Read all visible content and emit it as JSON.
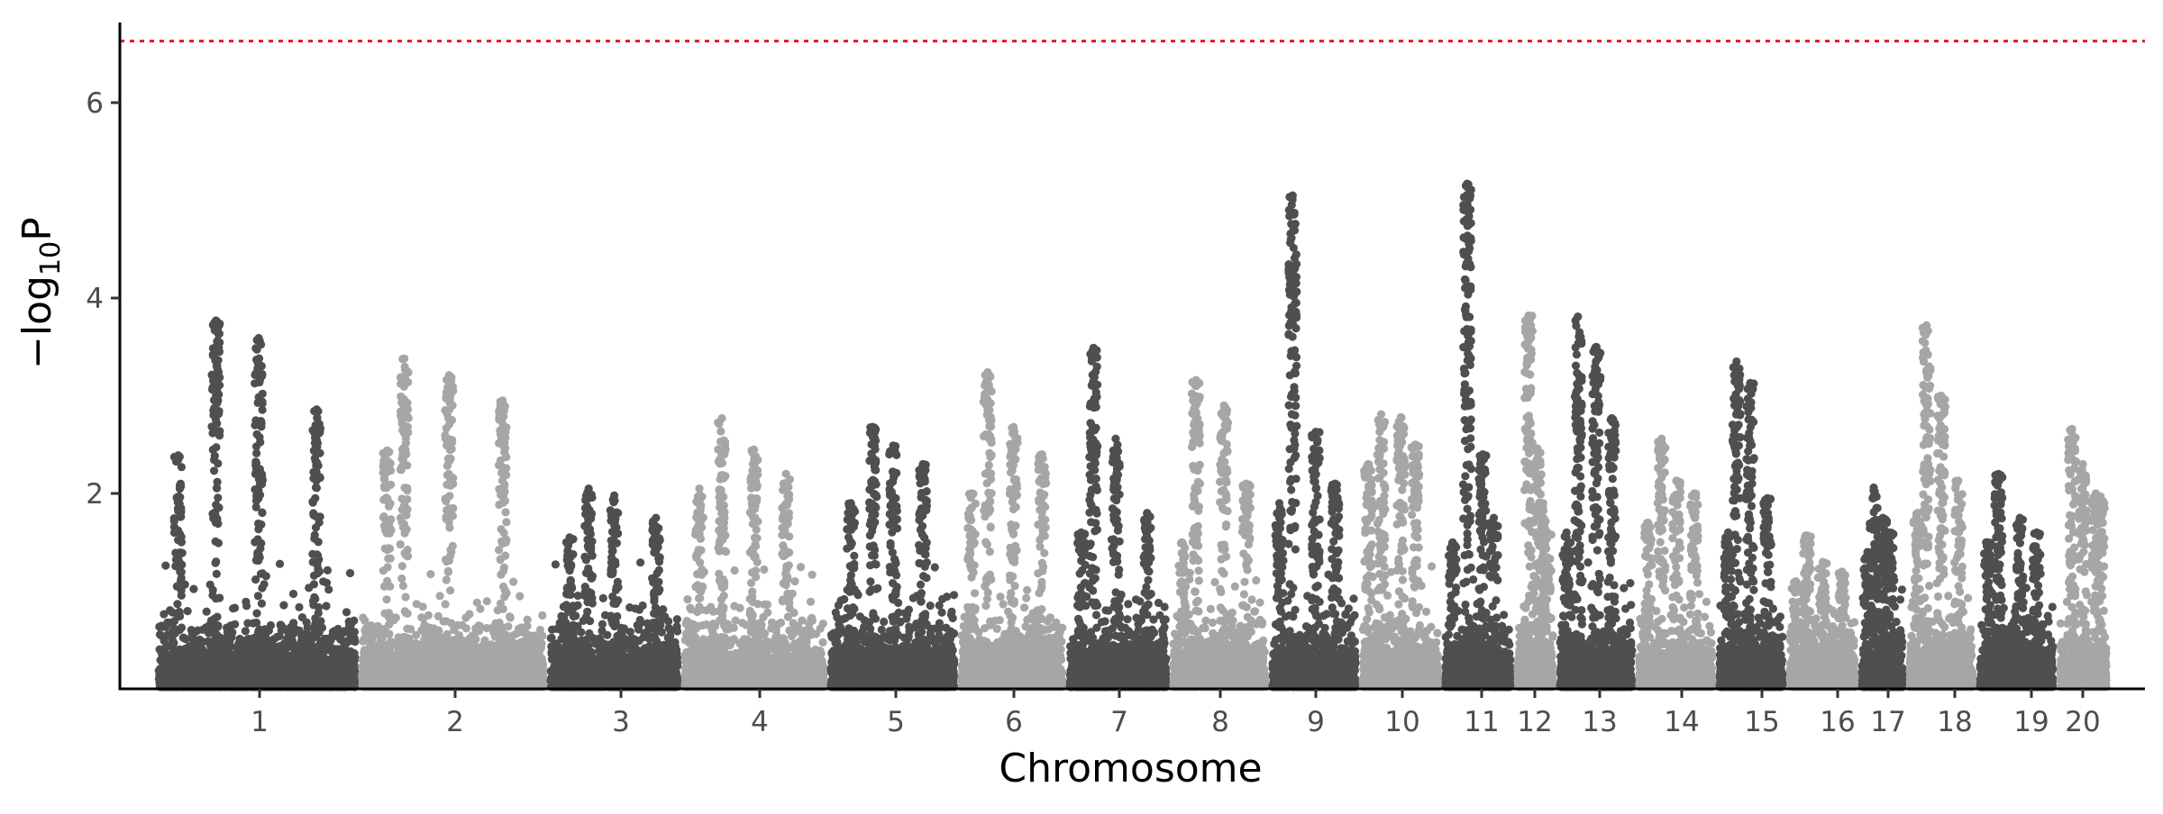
{
  "chart_data": {
    "type": "scatter",
    "variant": "manhattan",
    "xlabel": "Chromosome",
    "ylabel": {
      "prefix": "−log",
      "subscript": "10",
      "suffix": "P"
    },
    "ylim": [
      0,
      6.8
    ],
    "yticks": [
      2,
      4,
      6
    ],
    "grid": false,
    "legend": "none",
    "threshold": {
      "value": 6.63,
      "color": "#e8141e",
      "style": "dotted"
    },
    "colors": {
      "dark": "#4f4f4f",
      "light": "#a6a6a6",
      "axis": "#000000"
    },
    "chromosomes": [
      {
        "label": "1",
        "peak": 3.77,
        "peaks": [
          3.59,
          2.86,
          2.39
        ]
      },
      {
        "label": "2",
        "peak": 3.38,
        "peaks": [
          3.21,
          2.95,
          2.44
        ]
      },
      {
        "label": "3",
        "peak": 2.05,
        "peaks": [
          1.98,
          1.75,
          1.55
        ]
      },
      {
        "label": "4",
        "peak": 2.77,
        "peaks": [
          2.45,
          2.2,
          2.05
        ]
      },
      {
        "label": "5",
        "peak": 2.68,
        "peaks": [
          2.49,
          2.3,
          1.9
        ]
      },
      {
        "label": "6",
        "peak": 3.24,
        "peaks": [
          2.68,
          2.4,
          2.0
        ]
      },
      {
        "label": "7",
        "peak": 3.49,
        "peaks": [
          2.56,
          1.8,
          1.6
        ]
      },
      {
        "label": "8",
        "peak": 3.16,
        "peaks": [
          2.9,
          2.1,
          1.5
        ]
      },
      {
        "label": "9",
        "peak": 5.05,
        "peaks": [
          2.63,
          2.1,
          1.9
        ]
      },
      {
        "label": "10",
        "peak": 2.81,
        "peaks": [
          2.78,
          2.5,
          2.3
        ]
      },
      {
        "label": "11",
        "peak": 5.17,
        "peaks": [
          2.4,
          1.75,
          1.5
        ]
      },
      {
        "label": "12",
        "peak": 3.82,
        "peaks": [
          2.46,
          1.9,
          1.6
        ]
      },
      {
        "label": "13",
        "peak": 3.81,
        "peaks": [
          3.5,
          2.77,
          1.6
        ]
      },
      {
        "label": "14",
        "peak": 2.56,
        "peaks": [
          2.13,
          2.0,
          1.7
        ]
      },
      {
        "label": "15",
        "peak": 3.35,
        "peaks": [
          3.13,
          1.95,
          1.6
        ]
      },
      {
        "label": "16",
        "peak": 1.57,
        "peaks": [
          1.3,
          1.2,
          1.1
        ]
      },
      {
        "label": "17",
        "peak": 2.06,
        "peaks": [
          1.75,
          1.6,
          1.4
        ]
      },
      {
        "label": "18",
        "peak": 3.72,
        "peaks": [
          3.0,
          2.13,
          1.8
        ]
      },
      {
        "label": "19",
        "peak": 2.2,
        "peaks": [
          1.75,
          1.6,
          1.5
        ]
      },
      {
        "label": "20",
        "peak": 2.66,
        "peaks": [
          2.3,
          2.0,
          1.97
        ]
      }
    ]
  }
}
